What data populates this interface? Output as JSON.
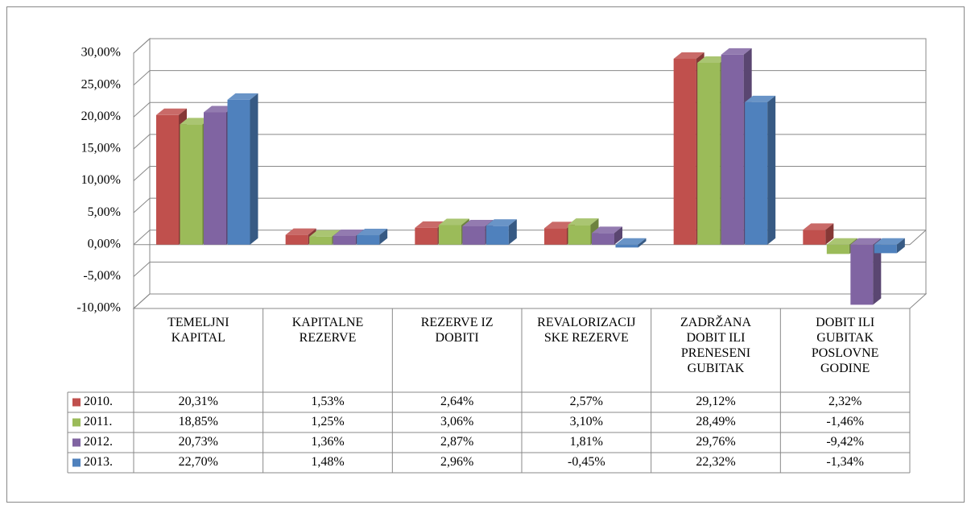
{
  "chart_data": {
    "type": "bar3d",
    "categories": [
      "TEMELJNI KAPITAL",
      "KAPITALNE REZERVE",
      "REZERVE IZ DOBITI",
      "REVALORIZACIJSKE REZERVE",
      "ZADRŽANA DOBIT ILI PRENESENI GUBITAK",
      "DOBIT ILI GUBITAK POSLOVNE GODINE"
    ],
    "series": [
      {
        "name": "2010.",
        "color": "#c0504d",
        "values": [
          20.31,
          1.53,
          2.64,
          2.57,
          29.12,
          2.32
        ],
        "value_labels": [
          "20,31%",
          "1,53%",
          "2,64%",
          "2,57%",
          "29,12%",
          "2,32%"
        ]
      },
      {
        "name": "2011.",
        "color": "#9bbb59",
        "values": [
          18.85,
          1.25,
          3.06,
          3.1,
          28.49,
          -1.46
        ],
        "value_labels": [
          "18,85%",
          "1,25%",
          "3,06%",
          "3,10%",
          "28,49%",
          "-1,46%"
        ]
      },
      {
        "name": "2012.",
        "color": "#8064a2",
        "values": [
          20.73,
          1.36,
          2.87,
          1.81,
          29.76,
          -9.42
        ],
        "value_labels": [
          "20,73%",
          "1,36%",
          "2,87%",
          "1,81%",
          "29,76%",
          "-9,42%"
        ]
      },
      {
        "name": "2013.",
        "color": "#4f81bd",
        "values": [
          22.7,
          1.48,
          2.96,
          -0.45,
          22.32,
          -1.34
        ],
        "value_labels": [
          "22,70%",
          "1,48%",
          "2,96%",
          "-0,45%",
          "22,32%",
          "-1,34%"
        ]
      }
    ],
    "ylim": [
      -10,
      30
    ],
    "yticks": [
      {
        "value": -10,
        "label": "-10,00%"
      },
      {
        "value": -5,
        "label": "-5,00%"
      },
      {
        "value": 0,
        "label": "0,00%"
      },
      {
        "value": 5,
        "label": "5,00%"
      },
      {
        "value": 10,
        "label": "10,00%"
      },
      {
        "value": 15,
        "label": "15,00%"
      },
      {
        "value": 20,
        "label": "20,00%"
      },
      {
        "value": 25,
        "label": "25,00%"
      },
      {
        "value": 30,
        "label": "30,00%"
      }
    ],
    "grid": true
  }
}
